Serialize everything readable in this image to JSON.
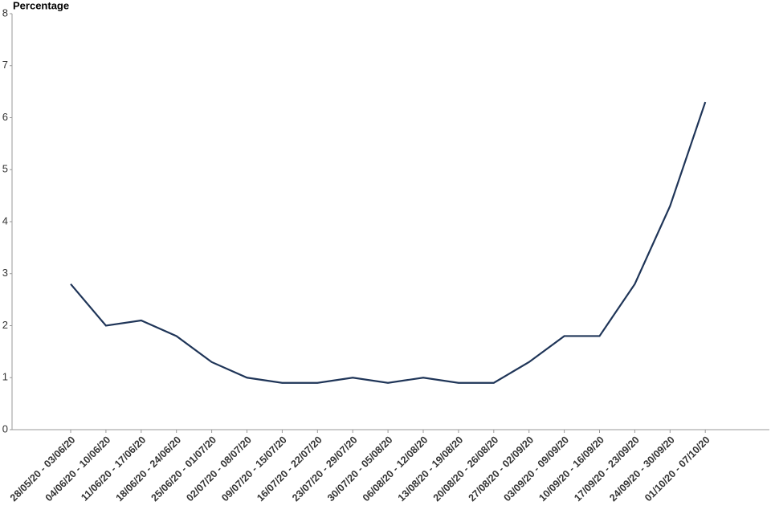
{
  "chart_data": {
    "type": "line",
    "y_label": "Percentage",
    "categories": [
      "28/05/20 - 03/06/20",
      "04/06/20 - 10/06/20",
      "11/06/20 - 17/06/20",
      "18/06/20 - 24/06/20",
      "25/06/20 - 01/07/20",
      "02/07/20 - 08/07/20",
      "09/07/20 - 15/07/20",
      "16/07/20 - 22/07/20",
      "23/07/20 - 29/07/20",
      "30/07/20 - 05/08/20",
      "06/08/20 - 12/08/20",
      "13/08/20 - 19/08/20",
      "20/08/20 - 26/08/20",
      "27/08/20 - 02/09/20",
      "03/09/20 - 09/09/20",
      "10/09/20 - 16/09/20",
      "17/09/20 - 23/09/20",
      "24/09/20 - 30/09/20",
      "01/10/20 - 07/10/20"
    ],
    "values": [
      2.8,
      2.0,
      2.1,
      1.8,
      1.3,
      1.0,
      0.9,
      0.9,
      1.0,
      0.9,
      1.0,
      0.9,
      0.9,
      1.3,
      1.8,
      1.8,
      2.8,
      4.3,
      6.3
    ],
    "color": "#1f3558",
    "ylim": [
      0,
      8
    ],
    "yticks": [
      0,
      1,
      2,
      3,
      4,
      5,
      6,
      7,
      8
    ],
    "grid": false
  }
}
